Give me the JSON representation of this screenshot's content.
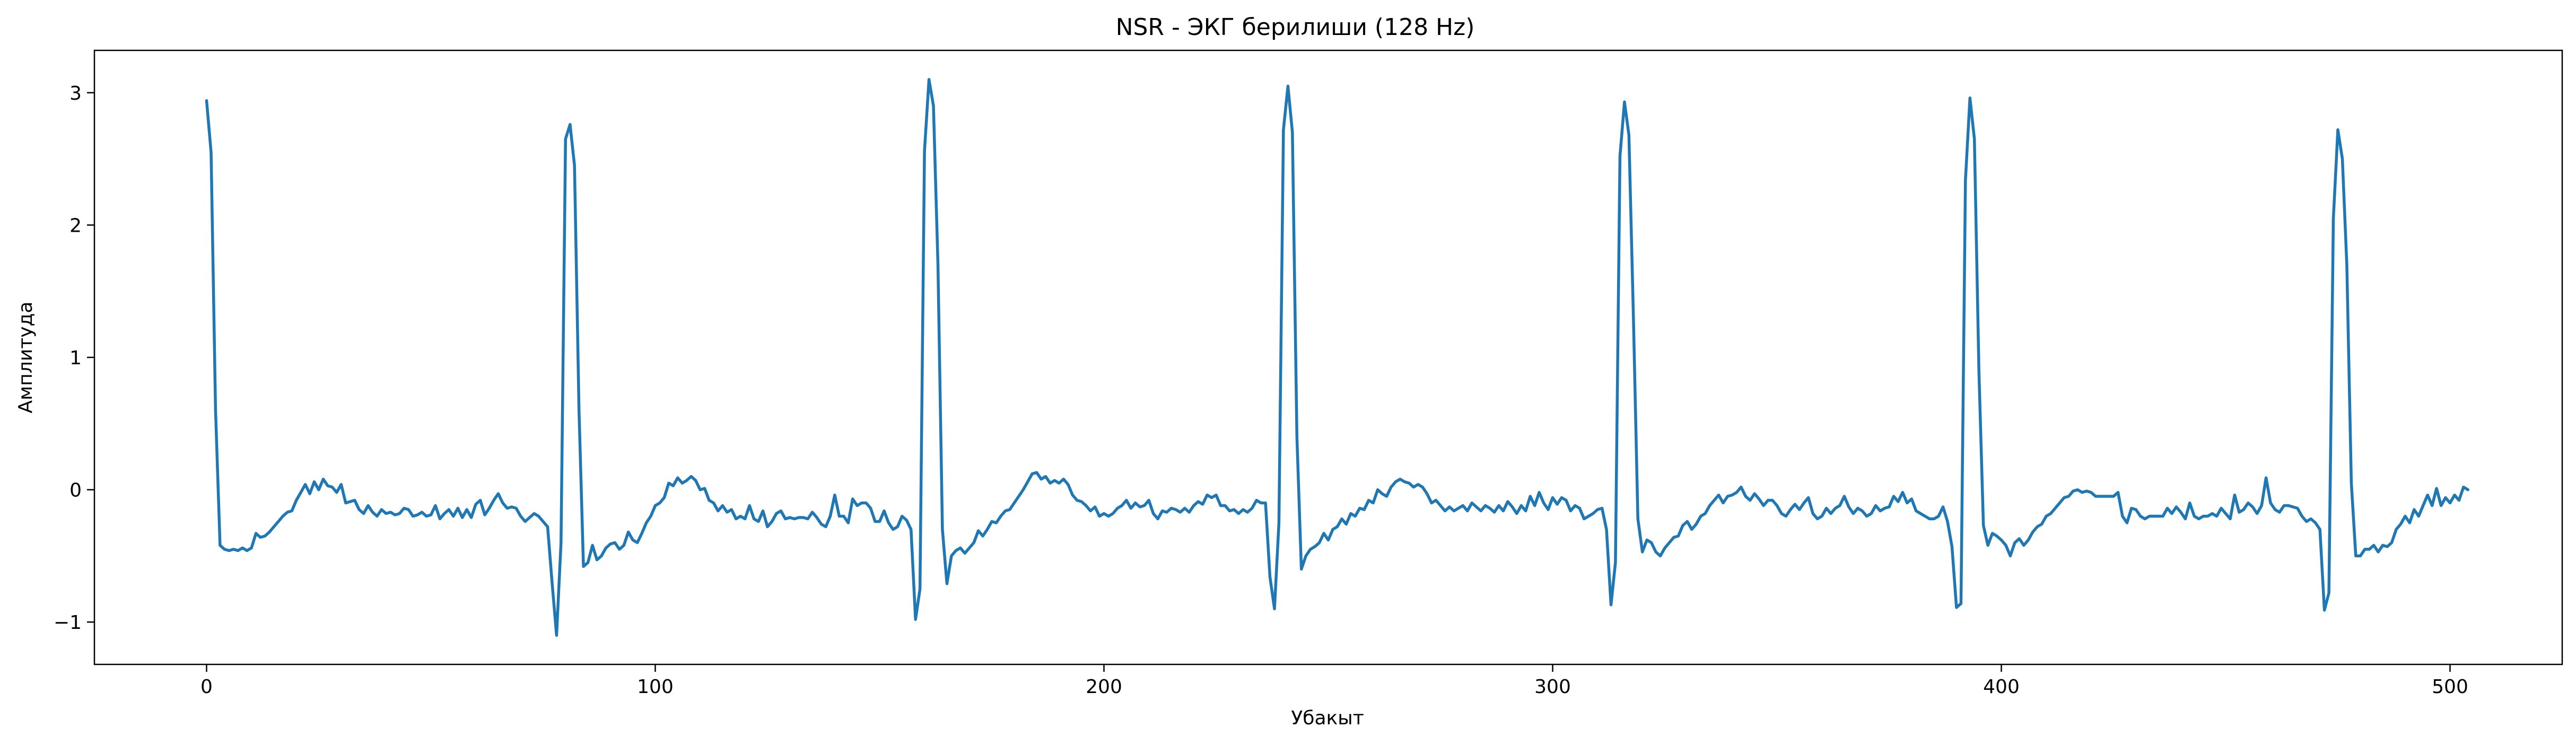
{
  "chart_data": {
    "type": "line",
    "title": "NSR - ЭКГ берилиши (128 Hz)",
    "xlabel": "Убакыт",
    "ylabel": "Амплитуда",
    "xlim": [
      -25,
      525
    ],
    "ylim": [
      -1.32,
      3.32
    ],
    "xticks": [
      0,
      100,
      200,
      300,
      400,
      500
    ],
    "yticks": [
      -1,
      0,
      1,
      2,
      3
    ],
    "grid": false,
    "legend": "none",
    "series": [
      {
        "color": "#1f77b4",
        "x_start": 0,
        "x_step": 1,
        "values": [
          2.94,
          2.55,
          0.6,
          -0.42,
          -0.45,
          -0.46,
          -0.45,
          -0.46,
          -0.44,
          -0.46,
          -0.44,
          -0.33,
          -0.36,
          -0.35,
          -0.32,
          -0.28,
          -0.24,
          -0.2,
          -0.17,
          -0.16,
          -0.08,
          -0.02,
          0.04,
          -0.03,
          0.06,
          0.0,
          0.08,
          0.03,
          0.02,
          -0.02,
          0.04,
          -0.1,
          -0.09,
          -0.08,
          -0.15,
          -0.18,
          -0.12,
          -0.17,
          -0.2,
          -0.15,
          -0.18,
          -0.17,
          -0.19,
          -0.18,
          -0.14,
          -0.15,
          -0.2,
          -0.19,
          -0.17,
          -0.2,
          -0.19,
          -0.12,
          -0.22,
          -0.18,
          -0.15,
          -0.2,
          -0.14,
          -0.21,
          -0.15,
          -0.21,
          -0.11,
          -0.08,
          -0.19,
          -0.14,
          -0.08,
          -0.03,
          -0.1,
          -0.14,
          -0.13,
          -0.14,
          -0.2,
          -0.24,
          -0.21,
          -0.18,
          -0.2,
          -0.24,
          -0.28,
          -0.7,
          -1.1,
          -0.4,
          2.65,
          2.76,
          2.45,
          0.6,
          -0.58,
          -0.55,
          -0.42,
          -0.53,
          -0.5,
          -0.44,
          -0.41,
          -0.4,
          -0.45,
          -0.42,
          -0.32,
          -0.38,
          -0.4,
          -0.33,
          -0.25,
          -0.2,
          -0.12,
          -0.1,
          -0.06,
          0.05,
          0.03,
          0.09,
          0.05,
          0.07,
          0.1,
          0.07,
          0.0,
          0.01,
          -0.08,
          -0.1,
          -0.16,
          -0.12,
          -0.17,
          -0.15,
          -0.22,
          -0.2,
          -0.22,
          -0.12,
          -0.22,
          -0.24,
          -0.16,
          -0.28,
          -0.24,
          -0.18,
          -0.16,
          -0.22,
          -0.21,
          -0.22,
          -0.21,
          -0.21,
          -0.22,
          -0.17,
          -0.21,
          -0.26,
          -0.28,
          -0.2,
          -0.04,
          -0.2,
          -0.2,
          -0.25,
          -0.07,
          -0.12,
          -0.1,
          -0.1,
          -0.14,
          -0.24,
          -0.24,
          -0.16,
          -0.25,
          -0.3,
          -0.28,
          -0.2,
          -0.23,
          -0.3,
          -0.98,
          -0.75,
          2.56,
          3.1,
          2.9,
          1.7,
          -0.3,
          -0.71,
          -0.5,
          -0.46,
          -0.44,
          -0.48,
          -0.44,
          -0.4,
          -0.31,
          -0.35,
          -0.3,
          -0.24,
          -0.25,
          -0.2,
          -0.16,
          -0.15,
          -0.1,
          -0.05,
          0.0,
          0.06,
          0.12,
          0.13,
          0.08,
          0.1,
          0.05,
          0.07,
          0.05,
          0.08,
          0.04,
          -0.04,
          -0.08,
          -0.09,
          -0.12,
          -0.16,
          -0.13,
          -0.2,
          -0.18,
          -0.2,
          -0.18,
          -0.14,
          -0.12,
          -0.08,
          -0.14,
          -0.1,
          -0.13,
          -0.12,
          -0.08,
          -0.18,
          -0.22,
          -0.16,
          -0.17,
          -0.14,
          -0.15,
          -0.17,
          -0.14,
          -0.17,
          -0.12,
          -0.09,
          -0.11,
          -0.04,
          -0.06,
          -0.04,
          -0.12,
          -0.12,
          -0.16,
          -0.15,
          -0.18,
          -0.15,
          -0.17,
          -0.14,
          -0.08,
          -0.1,
          -0.1,
          -0.66,
          -0.9,
          -0.25,
          2.72,
          3.05,
          2.7,
          0.4,
          -0.6,
          -0.5,
          -0.45,
          -0.43,
          -0.4,
          -0.33,
          -0.38,
          -0.3,
          -0.28,
          -0.22,
          -0.26,
          -0.18,
          -0.2,
          -0.14,
          -0.15,
          -0.08,
          -0.1,
          0.0,
          -0.03,
          -0.05,
          0.02,
          0.06,
          0.08,
          0.06,
          0.05,
          0.02,
          0.04,
          0.02,
          -0.03,
          -0.1,
          -0.08,
          -0.12,
          -0.16,
          -0.13,
          -0.16,
          -0.14,
          -0.12,
          -0.16,
          -0.1,
          -0.13,
          -0.16,
          -0.12,
          -0.14,
          -0.17,
          -0.12,
          -0.16,
          -0.09,
          -0.13,
          -0.18,
          -0.12,
          -0.16,
          -0.05,
          -0.12,
          -0.02,
          -0.1,
          -0.15,
          -0.06,
          -0.11,
          -0.06,
          -0.08,
          -0.16,
          -0.12,
          -0.14,
          -0.22,
          -0.2,
          -0.18,
          -0.15,
          -0.14,
          -0.3,
          -0.87,
          -0.55,
          2.52,
          2.93,
          2.68,
          1.3,
          -0.22,
          -0.47,
          -0.38,
          -0.4,
          -0.47,
          -0.5,
          -0.44,
          -0.4,
          -0.36,
          -0.35,
          -0.27,
          -0.24,
          -0.3,
          -0.26,
          -0.2,
          -0.18,
          -0.12,
          -0.08,
          -0.04,
          -0.1,
          -0.05,
          -0.04,
          -0.02,
          0.02,
          -0.05,
          -0.08,
          -0.03,
          -0.07,
          -0.12,
          -0.08,
          -0.08,
          -0.12,
          -0.18,
          -0.2,
          -0.15,
          -0.11,
          -0.15,
          -0.1,
          -0.06,
          -0.18,
          -0.22,
          -0.2,
          -0.14,
          -0.18,
          -0.14,
          -0.12,
          -0.05,
          -0.13,
          -0.18,
          -0.14,
          -0.16,
          -0.2,
          -0.18,
          -0.12,
          -0.16,
          -0.14,
          -0.13,
          -0.05,
          -0.09,
          -0.02,
          -0.1,
          -0.07,
          -0.16,
          -0.18,
          -0.2,
          -0.22,
          -0.22,
          -0.2,
          -0.13,
          -0.24,
          -0.43,
          -0.89,
          -0.86,
          2.34,
          2.96,
          2.65,
          0.9,
          -0.27,
          -0.42,
          -0.33,
          -0.35,
          -0.38,
          -0.42,
          -0.5,
          -0.4,
          -0.37,
          -0.42,
          -0.38,
          -0.32,
          -0.28,
          -0.26,
          -0.2,
          -0.18,
          -0.14,
          -0.1,
          -0.06,
          -0.05,
          -0.01,
          0.0,
          -0.02,
          -0.01,
          -0.02,
          -0.05,
          -0.05,
          -0.05,
          -0.05,
          -0.05,
          -0.02,
          -0.2,
          -0.25,
          -0.14,
          -0.15,
          -0.2,
          -0.22,
          -0.2,
          -0.2,
          -0.2,
          -0.2,
          -0.14,
          -0.18,
          -0.13,
          -0.17,
          -0.22,
          -0.1,
          -0.2,
          -0.22,
          -0.2,
          -0.2,
          -0.18,
          -0.2,
          -0.14,
          -0.18,
          -0.22,
          -0.04,
          -0.17,
          -0.15,
          -0.1,
          -0.13,
          -0.18,
          -0.12,
          0.09,
          -0.1,
          -0.15,
          -0.17,
          -0.12,
          -0.12,
          -0.13,
          -0.14,
          -0.2,
          -0.24,
          -0.22,
          -0.25,
          -0.3,
          -0.91,
          -0.78,
          2.05,
          2.72,
          2.5,
          1.7,
          0.05,
          -0.5,
          -0.5,
          -0.45,
          -0.45,
          -0.42,
          -0.47,
          -0.42,
          -0.43,
          -0.4,
          -0.3,
          -0.26,
          -0.2,
          -0.25,
          -0.15,
          -0.2,
          -0.12,
          -0.04,
          -0.12,
          0.01,
          -0.12,
          -0.06,
          -0.1,
          -0.04,
          -0.08,
          0.02,
          0.0
        ]
      }
    ]
  }
}
